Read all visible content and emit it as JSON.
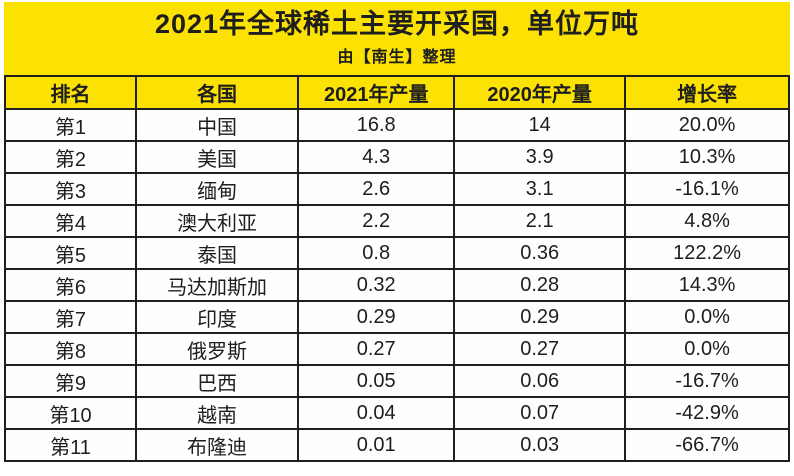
{
  "banner": {
    "title": "2021年全球稀土主要开采国，单位万吨",
    "subtitle": "由【南生】整理"
  },
  "table": {
    "columns": [
      "排名",
      "各国",
      "2021年产量",
      "2020年产量",
      "增长率"
    ],
    "rows": [
      [
        "第1",
        "中国",
        "16.8",
        "14",
        "20.0%"
      ],
      [
        "第2",
        "美国",
        "4.3",
        "3.9",
        "10.3%"
      ],
      [
        "第3",
        "缅甸",
        "2.6",
        "3.1",
        "-16.1%"
      ],
      [
        "第4",
        "澳大利亚",
        "2.2",
        "2.1",
        "4.8%"
      ],
      [
        "第5",
        "泰国",
        "0.8",
        "0.36",
        "122.2%"
      ],
      [
        "第6",
        "马达加斯加",
        "0.32",
        "0.28",
        "14.3%"
      ],
      [
        "第7",
        "印度",
        "0.29",
        "0.29",
        "0.0%"
      ],
      [
        "第8",
        "俄罗斯",
        "0.27",
        "0.27",
        "0.0%"
      ],
      [
        "第9",
        "巴西",
        "0.05",
        "0.06",
        "-16.7%"
      ],
      [
        "第10",
        "越南",
        "0.04",
        "0.07",
        "-42.9%"
      ],
      [
        "第11",
        "布隆迪",
        "0.01",
        "0.03",
        "-66.7%"
      ]
    ]
  },
  "colors": {
    "banner_yellow": "#fbe203",
    "border_black": "#1f1f1f",
    "text": "#1e1e1e",
    "row_background": "#fefefe"
  },
  "chart_data": {
    "type": "table",
    "title": "2021年全球稀土主要开采国，单位万吨",
    "subtitle": "由【南生】整理",
    "unit": "万吨",
    "columns": [
      "排名",
      "各国",
      "2021年产量",
      "2020年产量",
      "增长率"
    ],
    "categories": [
      "中国",
      "美国",
      "缅甸",
      "澳大利亚",
      "泰国",
      "马达加斯加",
      "印度",
      "俄罗斯",
      "巴西",
      "越南",
      "布隆迪"
    ],
    "ranks": [
      "第1",
      "第2",
      "第3",
      "第4",
      "第5",
      "第6",
      "第7",
      "第8",
      "第9",
      "第10",
      "第11"
    ],
    "series": [
      {
        "name": "2021年产量",
        "values": [
          16.8,
          4.3,
          2.6,
          2.2,
          0.8,
          0.32,
          0.29,
          0.27,
          0.05,
          0.04,
          0.01
        ]
      },
      {
        "name": "2020年产量",
        "values": [
          14,
          3.9,
          3.1,
          2.1,
          0.36,
          0.28,
          0.29,
          0.27,
          0.06,
          0.07,
          0.03
        ]
      },
      {
        "name": "增长率",
        "values": [
          "20.0%",
          "10.3%",
          "-16.1%",
          "4.8%",
          "122.2%",
          "14.3%",
          "0.0%",
          "0.0%",
          "-16.7%",
          "-42.9%",
          "-66.7%"
        ]
      }
    ],
    "legend_position": "none",
    "grid": "full-borders"
  }
}
